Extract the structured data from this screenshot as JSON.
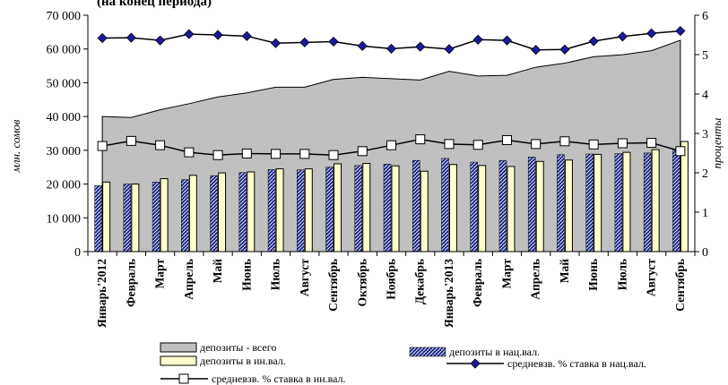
{
  "chart_data": {
    "type": "bar",
    "title": "(на конец периода)",
    "ylabel_left": "млн. сомов",
    "ylabel_right": "проценты",
    "ylim_left": [
      0,
      70000
    ],
    "ylim_right": [
      0,
      6
    ],
    "yticks_left": [
      "0",
      "10 000",
      "20 000",
      "30 000",
      "40 000",
      "50 000",
      "60 000",
      "70 000"
    ],
    "yticks_right": [
      "0",
      "1",
      "2",
      "3",
      "4",
      "5",
      "6"
    ],
    "categories": [
      "Январь'2012",
      "Февраль",
      "Март",
      "Апрель",
      "Май",
      "Июнь",
      "Июль",
      "Август",
      "Сентябрь",
      "Октябрь",
      "Ноябрь",
      "Декабрь",
      "Январь'2013",
      "Февраль",
      "Март",
      "Апрель",
      "Май",
      "Июнь",
      "Июль",
      "Август",
      "Сентябрь"
    ],
    "series": [
      {
        "name": "депозиты - всего",
        "kind": "area",
        "axis": "left",
        "color": "#c0c0c0",
        "values": [
          40000,
          39700,
          42000,
          43800,
          45800,
          47000,
          48700,
          48700,
          51000,
          51600,
          51200,
          50800,
          53400,
          52000,
          52200,
          54600,
          55800,
          57700,
          58300,
          59500,
          62600
        ]
      },
      {
        "name": "депозиты в нац.вал.",
        "kind": "bar",
        "axis": "left",
        "color": "#1f2a8a",
        "values": [
          19500,
          20000,
          20600,
          21300,
          22500,
          23400,
          24300,
          24200,
          25000,
          25500,
          25900,
          27000,
          27600,
          26500,
          27000,
          28000,
          28700,
          28900,
          29000,
          29200,
          30000
        ]
      },
      {
        "name": "депозиты в ин.вал.",
        "kind": "bar",
        "axis": "left",
        "color": "#ffffcc",
        "values": [
          20600,
          20000,
          21600,
          22600,
          23300,
          23600,
          24500,
          24500,
          26000,
          26100,
          25400,
          23800,
          25800,
          25500,
          25200,
          26700,
          27100,
          28800,
          29400,
          30200,
          32600
        ]
      },
      {
        "name": "средневзв. % ставка в нац.вал.",
        "kind": "line",
        "axis": "right",
        "color": "#1a1aa0",
        "marker": "diamond",
        "values": [
          5.42,
          5.43,
          5.36,
          5.52,
          5.5,
          5.47,
          5.29,
          5.31,
          5.33,
          5.22,
          5.15,
          5.2,
          5.14,
          5.38,
          5.36,
          5.12,
          5.13,
          5.34,
          5.46,
          5.54,
          5.6
        ]
      },
      {
        "name": "средневзв. % ставка в ин.вал.",
        "kind": "line",
        "axis": "right",
        "color": "#000000",
        "marker": "square",
        "values": [
          2.68,
          2.81,
          2.7,
          2.52,
          2.45,
          2.49,
          2.48,
          2.48,
          2.45,
          2.55,
          2.7,
          2.85,
          2.73,
          2.71,
          2.83,
          2.73,
          2.8,
          2.72,
          2.75,
          2.76,
          2.55
        ]
      }
    ],
    "grid": false,
    "legend": "bottom"
  }
}
